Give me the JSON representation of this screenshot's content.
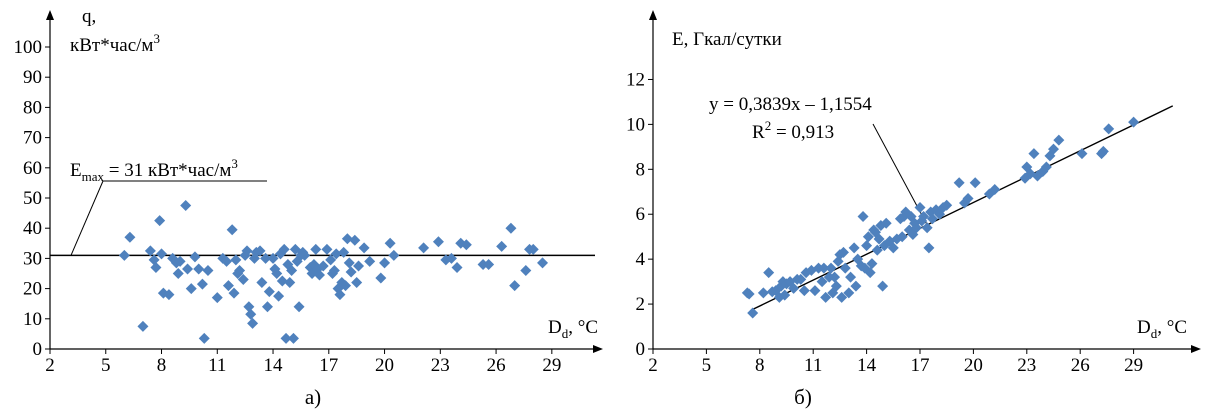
{
  "chart_data": [
    {
      "type": "scatter",
      "caption": "а)",
      "ylabel_line1": "q,",
      "ylabel_line2": "кВт*час/м",
      "ylabel_sup": "3",
      "xlabel_main": "D",
      "xlabel_sub": "d",
      "xlabel_unit": ", °C",
      "xlim": [
        2,
        31
      ],
      "ylim": [
        0,
        100
      ],
      "x_ticks": [
        2,
        5,
        8,
        11,
        14,
        17,
        20,
        23,
        26,
        29
      ],
      "y_ticks": [
        0,
        10,
        20,
        30,
        40,
        50,
        60,
        70,
        80,
        90,
        100
      ],
      "marker_color": "#4f81bd",
      "reference_line": {
        "y": 31,
        "label_main": "E",
        "label_sub": "max",
        "label_text": " = 31 кВт*час/м",
        "label_sup": "3"
      },
      "points": [
        [
          6,
          31
        ],
        [
          6.3,
          37
        ],
        [
          7,
          7.5
        ],
        [
          7.4,
          32.5
        ],
        [
          7.6,
          29.5
        ],
        [
          7.7,
          27
        ],
        [
          7.9,
          42.5
        ],
        [
          8,
          31.5
        ],
        [
          8.1,
          18.5
        ],
        [
          8.4,
          18
        ],
        [
          8.6,
          30
        ],
        [
          8.8,
          28.5
        ],
        [
          8.9,
          25
        ],
        [
          9,
          29
        ],
        [
          9.3,
          47.5
        ],
        [
          9.4,
          26.5
        ],
        [
          9.6,
          20
        ],
        [
          9.8,
          30.5
        ],
        [
          10,
          26.5
        ],
        [
          10.2,
          21.5
        ],
        [
          10.3,
          3.5
        ],
        [
          10.5,
          26
        ],
        [
          11,
          17
        ],
        [
          11.3,
          30
        ],
        [
          11.5,
          29
        ],
        [
          11.6,
          21
        ],
        [
          11.8,
          39.5
        ],
        [
          11.9,
          18.5
        ],
        [
          12,
          29.5
        ],
        [
          12.1,
          25
        ],
        [
          12.2,
          26
        ],
        [
          12.4,
          23
        ],
        [
          12.5,
          31
        ],
        [
          12.6,
          32.5
        ],
        [
          12.7,
          14
        ],
        [
          12.8,
          11.5
        ],
        [
          12.9,
          8.5
        ],
        [
          13,
          30
        ],
        [
          13.1,
          32
        ],
        [
          13.3,
          32.5
        ],
        [
          13.4,
          22
        ],
        [
          13.6,
          30
        ],
        [
          13.7,
          14
        ],
        [
          13.8,
          19
        ],
        [
          14,
          30
        ],
        [
          14.1,
          26.5
        ],
        [
          14.2,
          25
        ],
        [
          14.3,
          17.5
        ],
        [
          14.4,
          31.5
        ],
        [
          14.5,
          22.5
        ],
        [
          14.6,
          33
        ],
        [
          14.7,
          3.5
        ],
        [
          14.8,
          28
        ],
        [
          14.9,
          22
        ],
        [
          15,
          26
        ],
        [
          15.1,
          3.5
        ],
        [
          15.2,
          33
        ],
        [
          15.3,
          29
        ],
        [
          15.4,
          14
        ],
        [
          15.5,
          31
        ],
        [
          15.6,
          32
        ],
        [
          15.7,
          31
        ],
        [
          16,
          27
        ],
        [
          16.1,
          25
        ],
        [
          16.2,
          28
        ],
        [
          16.3,
          33
        ],
        [
          16.4,
          26.5
        ],
        [
          16.5,
          24.5
        ],
        [
          16.7,
          27.5
        ],
        [
          16.9,
          33
        ],
        [
          17.1,
          29.5
        ],
        [
          17.2,
          25
        ],
        [
          17.3,
          26
        ],
        [
          17.4,
          31.5
        ],
        [
          17.5,
          20
        ],
        [
          17.6,
          18
        ],
        [
          17.7,
          22
        ],
        [
          17.8,
          32
        ],
        [
          17.9,
          21
        ],
        [
          18,
          36.5
        ],
        [
          18.1,
          28.5
        ],
        [
          18.2,
          25.5
        ],
        [
          18.4,
          36
        ],
        [
          18.5,
          22
        ],
        [
          18.6,
          27.5
        ],
        [
          18.9,
          33.5
        ],
        [
          19.2,
          29
        ],
        [
          19.8,
          23.5
        ],
        [
          20,
          28.5
        ],
        [
          20.3,
          35
        ],
        [
          20.5,
          31
        ],
        [
          22.1,
          33.5
        ],
        [
          22.9,
          35.5
        ],
        [
          23.3,
          29.5
        ],
        [
          23.6,
          30
        ],
        [
          23.9,
          27
        ],
        [
          24.1,
          35
        ],
        [
          24.4,
          34.5
        ],
        [
          25.3,
          28
        ],
        [
          25.6,
          28
        ],
        [
          26.3,
          34
        ],
        [
          26.8,
          40
        ],
        [
          27,
          21
        ],
        [
          27.6,
          26
        ],
        [
          27.8,
          33
        ],
        [
          28,
          33
        ],
        [
          28.5,
          28.5
        ]
      ]
    },
    {
      "type": "scatter",
      "caption": "б)",
      "ylabel": "E, Гкал/сутки",
      "xlabel_main": "D",
      "xlabel_sub": "d",
      "xlabel_unit": ", °C",
      "xlim": [
        2,
        32
      ],
      "ylim": [
        0,
        13
      ],
      "x_ticks": [
        2,
        5,
        8,
        11,
        14,
        17,
        20,
        23,
        26,
        29
      ],
      "y_ticks": [
        0,
        2,
        4,
        6,
        8,
        10,
        12
      ],
      "marker_color": "#4f81bd",
      "trendline": {
        "slope": 0.3839,
        "intercept": -1.1554,
        "x_from": 7.5,
        "x_to": 31.2,
        "equation": "y = 0,3839x – 1,1554",
        "r2_main": "R",
        "r2_sup": "2",
        "r2_value": " = 0,913"
      },
      "points": [
        [
          7.3,
          2.5
        ],
        [
          7.4,
          2.45
        ],
        [
          7.6,
          1.6
        ],
        [
          8.2,
          2.5
        ],
        [
          8.5,
          3.4
        ],
        [
          8.7,
          2.55
        ],
        [
          8.9,
          2.6
        ],
        [
          9.1,
          2.3
        ],
        [
          9.2,
          2.8
        ],
        [
          9.3,
          3.0
        ],
        [
          9.4,
          2.4
        ],
        [
          9.5,
          2.9
        ],
        [
          9.7,
          3.0
        ],
        [
          9.9,
          2.7
        ],
        [
          10.1,
          3.1
        ],
        [
          10.3,
          3.1
        ],
        [
          10.5,
          2.6
        ],
        [
          10.6,
          3.4
        ],
        [
          10.9,
          3.5
        ],
        [
          11.1,
          2.6
        ],
        [
          11.3,
          3.6
        ],
        [
          11.5,
          3.0
        ],
        [
          11.6,
          3.6
        ],
        [
          11.7,
          2.3
        ],
        [
          11.9,
          3.2
        ],
        [
          12.0,
          3.6
        ],
        [
          12.1,
          2.5
        ],
        [
          12.2,
          3.2
        ],
        [
          12.3,
          2.8
        ],
        [
          12.4,
          3.9
        ],
        [
          12.5,
          4.2
        ],
        [
          12.6,
          2.3
        ],
        [
          12.7,
          4.3
        ],
        [
          12.8,
          3.6
        ],
        [
          13.0,
          2.5
        ],
        [
          13.1,
          3.2
        ],
        [
          13.3,
          4.5
        ],
        [
          13.4,
          2.8
        ],
        [
          13.5,
          4.0
        ],
        [
          13.7,
          3.7
        ],
        [
          13.8,
          5.9
        ],
        [
          13.9,
          3.6
        ],
        [
          14.0,
          4.6
        ],
        [
          14.1,
          5.0
        ],
        [
          14.2,
          3.4
        ],
        [
          14.3,
          3.8
        ],
        [
          14.4,
          5.3
        ],
        [
          14.5,
          5.2
        ],
        [
          14.6,
          4.4
        ],
        [
          14.7,
          4.9
        ],
        [
          14.8,
          5.5
        ],
        [
          14.9,
          2.8
        ],
        [
          15.0,
          4.6
        ],
        [
          15.1,
          5.6
        ],
        [
          15.3,
          4.8
        ],
        [
          15.5,
          4.5
        ],
        [
          15.7,
          4.9
        ],
        [
          15.9,
          5.8
        ],
        [
          16.0,
          5.0
        ],
        [
          16.1,
          5.9
        ],
        [
          16.2,
          6.1
        ],
        [
          16.4,
          5.3
        ],
        [
          16.5,
          5.9
        ],
        [
          16.6,
          5.1
        ],
        [
          16.7,
          5.6
        ],
        [
          16.8,
          5.4
        ],
        [
          17.0,
          6.3
        ],
        [
          17.1,
          5.7
        ],
        [
          17.2,
          5.9
        ],
        [
          17.4,
          5.4
        ],
        [
          17.5,
          4.5
        ],
        [
          17.6,
          6.1
        ],
        [
          17.7,
          5.8
        ],
        [
          17.9,
          6.2
        ],
        [
          18.1,
          6.0
        ],
        [
          18.3,
          6.3
        ],
        [
          18.5,
          6.4
        ],
        [
          19.2,
          7.4
        ],
        [
          19.5,
          6.5
        ],
        [
          19.7,
          6.7
        ],
        [
          20.1,
          7.4
        ],
        [
          20.9,
          6.9
        ],
        [
          21.2,
          7.1
        ],
        [
          22.9,
          7.6
        ],
        [
          23.0,
          8.1
        ],
        [
          23.2,
          7.8
        ],
        [
          23.4,
          8.7
        ],
        [
          23.6,
          7.7
        ],
        [
          23.9,
          7.9
        ],
        [
          24.1,
          8.1
        ],
        [
          24.3,
          8.6
        ],
        [
          24.5,
          8.9
        ],
        [
          24.8,
          9.3
        ],
        [
          26.1,
          8.7
        ],
        [
          27.2,
          8.7
        ],
        [
          27.3,
          8.8
        ],
        [
          27.6,
          9.8
        ],
        [
          29.0,
          10.1
        ]
      ]
    }
  ]
}
